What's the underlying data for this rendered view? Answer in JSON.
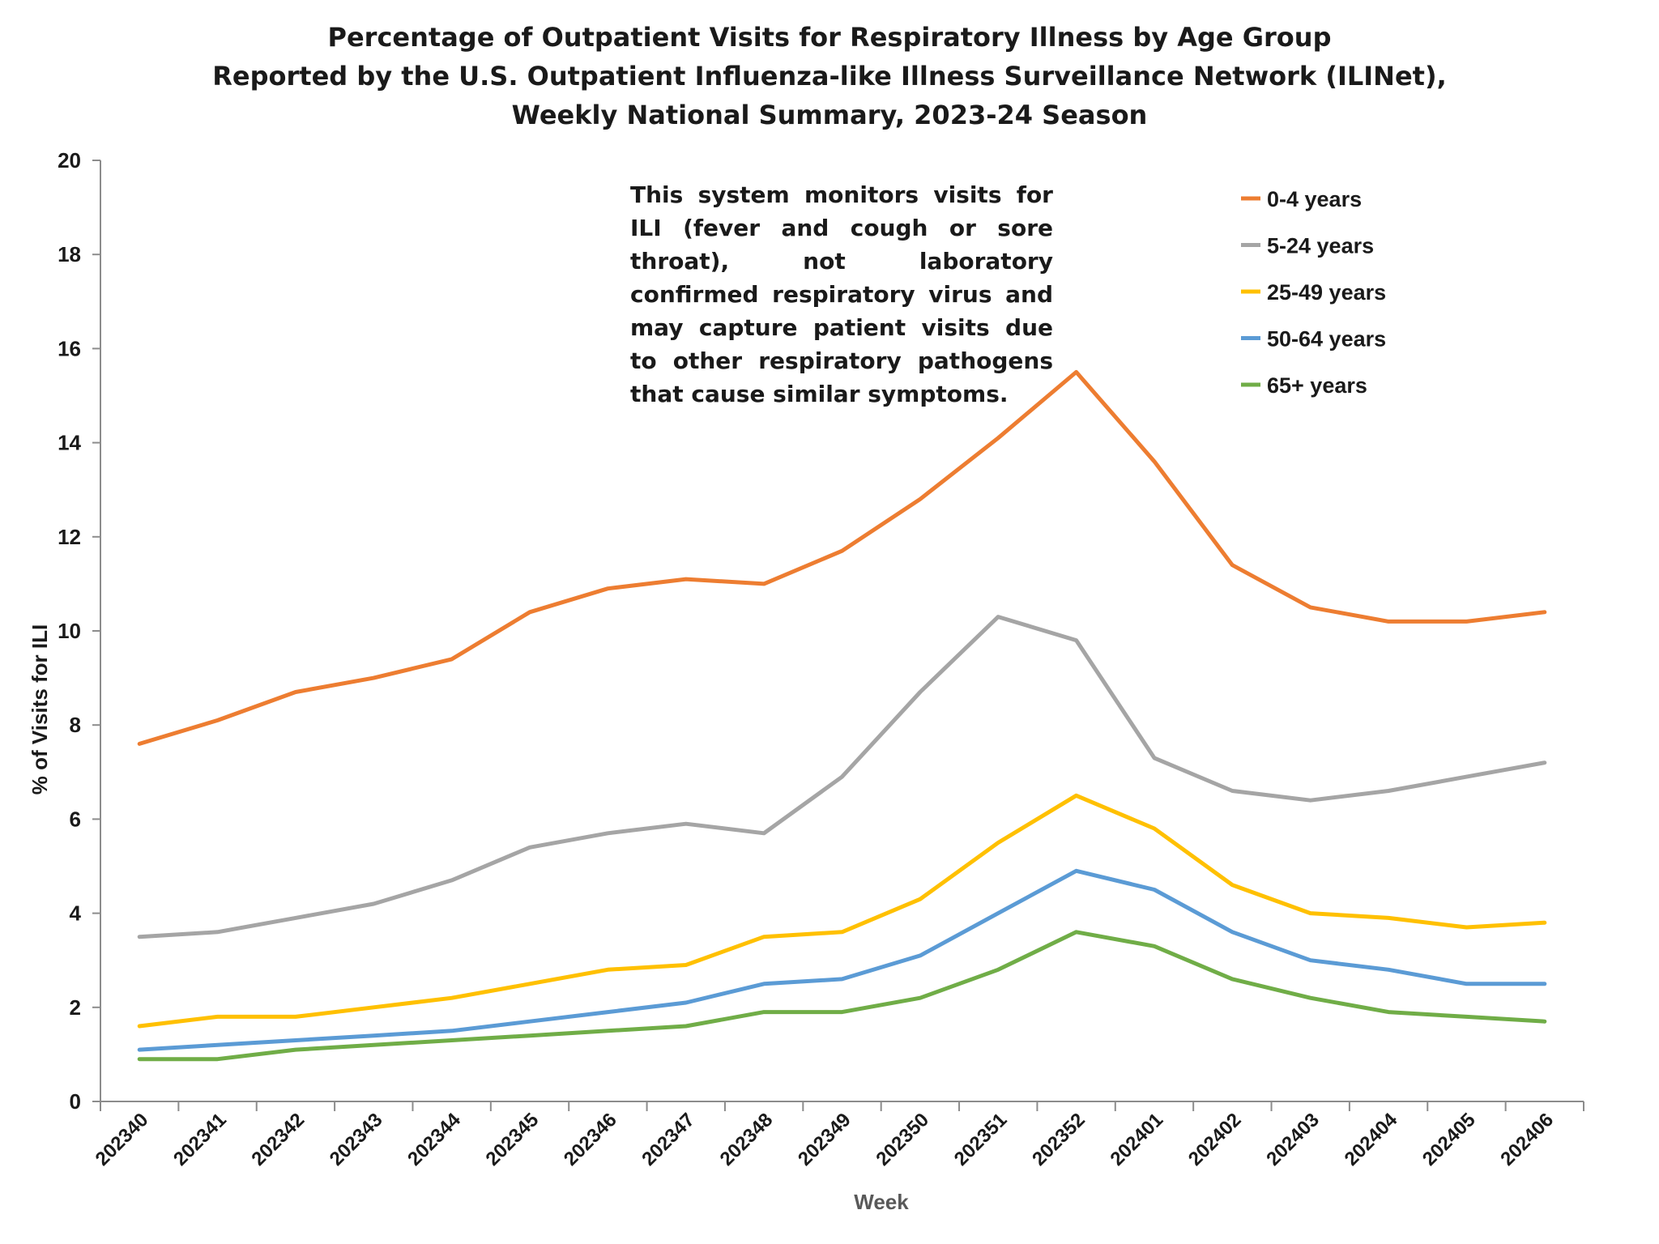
{
  "chart_data": {
    "type": "line",
    "title": [
      "Percentage of Outpatient Visits for Respiratory Illness by Age Group",
      "Reported by the U.S. Outpatient Influenza-like Illness Surveillance Network (ILINet),",
      "Weekly National Summary, 2023-24 Season"
    ],
    "xlabel": "Week",
    "ylabel": "% of Visits for ILI",
    "ylim": [
      0,
      20
    ],
    "yticks": [
      0,
      2,
      4,
      6,
      8,
      10,
      12,
      14,
      16,
      18,
      20
    ],
    "categories": [
      "202340",
      "202341",
      "202342",
      "202343",
      "202344",
      "202345",
      "202346",
      "202347",
      "202348",
      "202349",
      "202350",
      "202351",
      "202352",
      "202401",
      "202402",
      "202403",
      "202404",
      "202405",
      "202406"
    ],
    "annotation": "This system monitors visits for ILI (fever and cough or sore throat), not laboratory confirmed respiratory virus and may capture patient visits due to other respiratory pathogens that cause similar symptoms.",
    "legend_position": "top-right",
    "series": [
      {
        "name": "0-4 years",
        "color": "#ED7D31",
        "values": [
          7.6,
          8.1,
          8.7,
          9.0,
          9.4,
          10.4,
          10.9,
          11.1,
          11.0,
          11.7,
          12.8,
          14.1,
          15.5,
          13.6,
          11.4,
          10.5,
          10.2,
          10.2,
          10.4
        ]
      },
      {
        "name": "5-24 years",
        "color": "#A5A5A5",
        "values": [
          3.5,
          3.6,
          3.9,
          4.2,
          4.7,
          5.4,
          5.7,
          5.9,
          5.7,
          6.9,
          8.7,
          10.3,
          9.8,
          7.3,
          6.6,
          6.4,
          6.6,
          6.9,
          7.2
        ]
      },
      {
        "name": "25-49 years",
        "color": "#FFC000",
        "values": [
          1.6,
          1.8,
          1.8,
          2.0,
          2.2,
          2.5,
          2.8,
          2.9,
          3.5,
          3.6,
          4.3,
          5.5,
          6.5,
          5.8,
          4.6,
          4.0,
          3.9,
          3.7,
          3.8
        ]
      },
      {
        "name": "50-64 years",
        "color": "#5B9BD5",
        "values": [
          1.1,
          1.2,
          1.3,
          1.4,
          1.5,
          1.7,
          1.9,
          2.1,
          2.5,
          2.6,
          3.1,
          4.0,
          4.9,
          4.5,
          3.6,
          3.0,
          2.8,
          2.5,
          2.5
        ]
      },
      {
        "name": "65+ years",
        "color": "#70AD47",
        "values": [
          0.9,
          0.9,
          1.1,
          1.2,
          1.3,
          1.4,
          1.5,
          1.6,
          1.9,
          1.9,
          2.2,
          2.8,
          3.6,
          3.3,
          2.6,
          2.2,
          1.9,
          1.8,
          1.7
        ]
      }
    ]
  }
}
